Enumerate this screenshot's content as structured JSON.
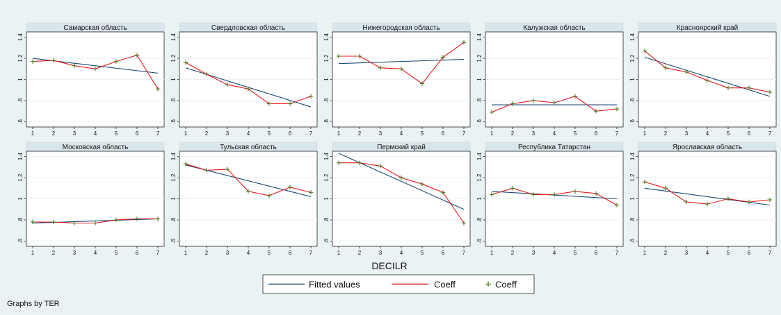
{
  "chart_data": {
    "type": "line",
    "xlabel": "DECILR",
    "x": [
      1,
      2,
      3,
      4,
      5,
      6,
      7
    ],
    "ylim": [
      0.55,
      1.45
    ],
    "yticks": [
      0.6,
      0.8,
      1,
      1.2,
      1.4
    ],
    "ytick_labels": [
      ".6",
      ".8",
      "1",
      "1.2",
      "1.4"
    ],
    "xtick_labels": [
      "1",
      "2",
      "3",
      "4",
      "5",
      "6",
      "7"
    ],
    "grid": true,
    "legend_position": "bottom-center",
    "legend": [
      {
        "label": "Fitted values",
        "kind": "line",
        "color": "#1a476f"
      },
      {
        "label": "Coeff",
        "kind": "line",
        "color": "#e8161b"
      },
      {
        "label": "Coeff",
        "kind": "marker",
        "marker": "+",
        "color": "#4a7a22"
      }
    ],
    "colors": {
      "fitted": "#1a476f",
      "coeff_line": "#e8161b",
      "coeff_marker": "#4a7a22",
      "background": "#eaf2f3",
      "strip": "#d9e6eb",
      "grid": "#eaf2f3"
    },
    "panels": [
      {
        "title": "Самарская область",
        "coeff": [
          1.17,
          1.18,
          1.13,
          1.1,
          1.17,
          1.23,
          0.91
        ],
        "fitted": [
          1.2,
          1.06
        ]
      },
      {
        "title": "Свердловская область",
        "coeff": [
          1.16,
          1.05,
          0.95,
          0.91,
          0.77,
          0.77,
          0.84
        ],
        "fitted": [
          1.11,
          0.74
        ]
      },
      {
        "title": "Нижегородская область",
        "coeff": [
          1.22,
          1.22,
          1.11,
          1.1,
          0.96,
          1.21,
          1.35
        ],
        "fitted": [
          1.15,
          1.19
        ]
      },
      {
        "title": "Калужская область",
        "coeff": [
          0.69,
          0.77,
          0.8,
          0.78,
          0.84,
          0.7,
          0.72
        ],
        "fitted": [
          0.76,
          0.76
        ]
      },
      {
        "title": "Красноярский край",
        "coeff": [
          1.27,
          1.11,
          1.07,
          0.99,
          0.92,
          0.92,
          0.88
        ],
        "fitted": [
          1.21,
          0.84
        ]
      },
      {
        "title": "Московская область",
        "coeff": [
          0.78,
          0.78,
          0.77,
          0.77,
          0.8,
          0.81,
          0.81
        ],
        "fitted": [
          0.77,
          0.81
        ]
      },
      {
        "title": "Тульская область",
        "coeff": [
          1.33,
          1.27,
          1.28,
          1.07,
          1.03,
          1.11,
          1.06
        ],
        "fitted": [
          1.32,
          1.02
        ]
      },
      {
        "title": "Пермский край",
        "coeff": [
          1.34,
          1.34,
          1.31,
          1.2,
          1.14,
          1.06,
          0.77
        ],
        "fitted": [
          1.43,
          0.9
        ]
      },
      {
        "title": "Республика Татарстан",
        "coeff": [
          1.04,
          1.1,
          1.04,
          1.04,
          1.07,
          1.05,
          0.94
        ],
        "fitted": [
          1.07,
          1.0
        ]
      },
      {
        "title": "Ярославская область",
        "coeff": [
          1.16,
          1.1,
          0.97,
          0.95,
          1.0,
          0.97,
          0.99
        ],
        "fitted": [
          1.1,
          0.94
        ]
      }
    ]
  },
  "note": "Graphs by TER"
}
